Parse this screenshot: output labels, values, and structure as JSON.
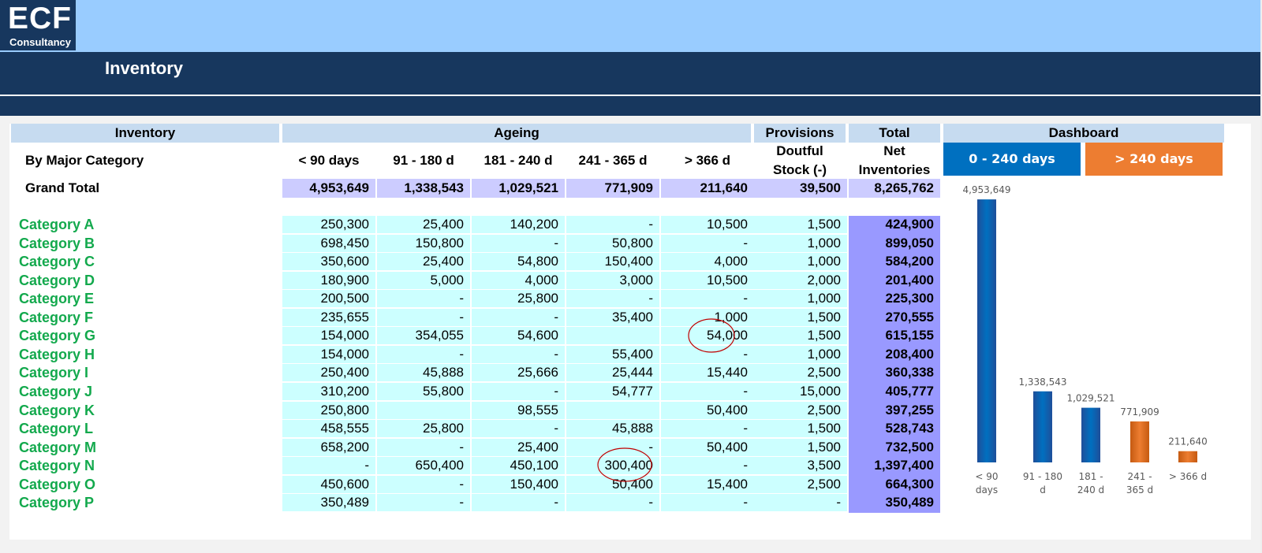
{
  "header": {
    "logo_main": "ECF",
    "logo_sub": "Consultancy",
    "page_title": "Inventory"
  },
  "table": {
    "group_headers": {
      "inventory": "Inventory",
      "ageing": "Ageing",
      "provisions": "Provisions",
      "total": "Total",
      "dashboard": "Dashboard"
    },
    "row_label_header": "By Major Category",
    "columns": [
      "< 90 days",
      "91 - 180 d",
      "181 - 240 d",
      "241 - 365 d",
      "> 366 d"
    ],
    "provisions_header_line1": "Doutful",
    "provisions_header_line2": "Stock (-)",
    "total_header_line1": "Net",
    "total_header_line2": "Inventories",
    "grand_total": {
      "label": "Grand Total",
      "values": [
        "4,953,649",
        "1,338,543",
        "1,029,521",
        "771,909",
        "211,640",
        "39,500",
        "8,265,762"
      ]
    },
    "rows": [
      {
        "label": "Category A",
        "values": [
          "250,300",
          "25,400",
          "140,200",
          "-",
          "10,500",
          "1,500",
          "424,900"
        ]
      },
      {
        "label": "Category B",
        "values": [
          "698,450",
          "150,800",
          "-",
          "50,800",
          "-",
          "1,000",
          "899,050"
        ]
      },
      {
        "label": "Category C",
        "values": [
          "350,600",
          "25,400",
          "54,800",
          "150,400",
          "4,000",
          "1,000",
          "584,200"
        ]
      },
      {
        "label": "Category D",
        "values": [
          "180,900",
          "5,000",
          "4,000",
          "3,000",
          "10,500",
          "2,000",
          "201,400"
        ]
      },
      {
        "label": "Category E",
        "values": [
          "200,500",
          "-",
          "25,800",
          "-",
          "-",
          "1,000",
          "225,300"
        ]
      },
      {
        "label": "Category F",
        "values": [
          "235,655",
          "-",
          "-",
          "35,400",
          "1,000",
          "1,500",
          "270,555"
        ]
      },
      {
        "label": "Category G",
        "values": [
          "154,000",
          "354,055",
          "54,600",
          "",
          "54,000",
          "1,500",
          "615,155"
        ]
      },
      {
        "label": "Category H",
        "values": [
          "154,000",
          "-",
          "-",
          "55,400",
          "-",
          "1,000",
          "208,400"
        ]
      },
      {
        "label": "Category I",
        "values": [
          "250,400",
          "45,888",
          "25,666",
          "25,444",
          "15,440",
          "2,500",
          "360,338"
        ]
      },
      {
        "label": "Category J",
        "values": [
          "310,200",
          "55,800",
          "-",
          "54,777",
          "-",
          "15,000",
          "405,777"
        ]
      },
      {
        "label": "Category K",
        "values": [
          "250,800",
          "",
          "98,555",
          "",
          "50,400",
          "2,500",
          "397,255"
        ]
      },
      {
        "label": "Category L",
        "values": [
          "458,555",
          "25,800",
          "-",
          "45,888",
          "-",
          "1,500",
          "528,743"
        ]
      },
      {
        "label": "Category M",
        "values": [
          "658,200",
          "-",
          "25,400",
          "-",
          "50,400",
          "1,500",
          "732,500"
        ]
      },
      {
        "label": "Category N",
        "values": [
          "-",
          "650,400",
          "450,100",
          "300,400",
          "-",
          "3,500",
          "1,397,400"
        ]
      },
      {
        "label": "Category O",
        "values": [
          "450,600",
          "-",
          "150,400",
          "50,400",
          "15,400",
          "2,500",
          "664,300"
        ]
      },
      {
        "label": "Category P",
        "values": [
          "350,489",
          "-",
          "-",
          "-",
          "-",
          "-",
          "350,489"
        ]
      }
    ]
  },
  "dashboard": {
    "button_left": "0 - 240 days",
    "button_right": "> 240 days",
    "colors": {
      "blue": "#0070c0",
      "orange": "#ed7d31",
      "button_blue": "#0070c0",
      "button_orange": "#ed7d31"
    }
  },
  "chart_data": {
    "type": "bar",
    "categories": [
      "< 90 days",
      "91 - 180 d",
      "181 - 240 d",
      "241 - 365 d",
      "> 366 d"
    ],
    "values": [
      4953649,
      1338543,
      1029521,
      771909,
      211640
    ],
    "value_labels": [
      "4,953,649",
      "1,338,543",
      "1,029,521",
      "771,909",
      "211,640"
    ],
    "colors": [
      "#0070c0",
      "#0070c0",
      "#0070c0",
      "#ed7d31",
      "#ed7d31"
    ],
    "title": "",
    "xlabel": "",
    "ylabel": "",
    "ylim": [
      0,
      5000000
    ],
    "grid": false
  }
}
